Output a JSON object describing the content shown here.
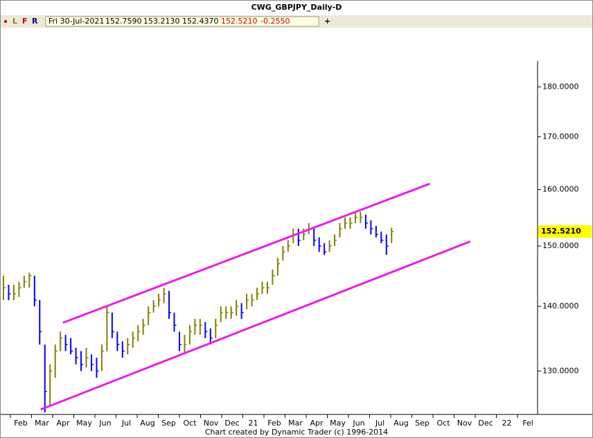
{
  "chart_data": {
    "type": "hlc",
    "title": "CWG_GBPJPY_Daily-D",
    "toolbar": {
      "letters": [
        "L",
        "F",
        "R"
      ],
      "date": "Fri 30-Jul-2021",
      "open": "152.7590",
      "high": "153.2130",
      "low": "152.4370",
      "close": "152.5210",
      "change": "-0.2550"
    },
    "last_price": {
      "value": 152.521,
      "label": "152.5210"
    },
    "footer": "Chart created by Dynamic Trader  (c) 1996-2014",
    "categories": [
      "Feb",
      "Mar",
      "Apr",
      "May",
      "Jun",
      "Jul",
      "Aug",
      "Sep",
      "Oct",
      "Nov",
      "Dec",
      "21",
      "Feb",
      "Mar",
      "Apr",
      "May",
      "Jun",
      "Jul",
      "Aug",
      "Sep",
      "Oct",
      "Nov",
      "Dec",
      "22",
      "Fel"
    ],
    "log_scale": true,
    "ylim": [
      123.7,
      185.4
    ],
    "yticks": [
      {
        "value": 130,
        "label": "130.0000"
      },
      {
        "value": 140,
        "label": "140.0000"
      },
      {
        "value": 150,
        "label": "150.0000"
      },
      {
        "value": 160,
        "label": "160.0000"
      },
      {
        "value": 170,
        "label": "170.0000"
      },
      {
        "value": 180,
        "label": "180.0000"
      }
    ],
    "up_color": "#808000",
    "down_color": "#0000ff",
    "high": [
      145,
      143.5,
      143.5,
      144,
      145,
      145.5,
      145,
      141,
      134,
      131,
      134,
      136,
      135.5,
      135,
      133.5,
      133,
      133.5,
      132.5,
      132,
      134,
      140,
      139,
      136,
      134.5,
      135,
      136,
      137,
      138,
      140,
      141,
      142,
      143,
      142.5,
      139,
      136,
      135.5,
      137,
      138,
      138,
      137.5,
      136.5,
      138,
      140,
      140,
      140,
      141,
      140.5,
      142,
      142,
      143,
      144,
      144,
      146,
      148,
      150,
      151,
      153,
      153,
      153,
      154,
      153,
      151.5,
      150.5,
      151,
      152,
      154,
      155,
      155,
      156,
      156,
      155.5,
      154.5,
      153.5,
      152.5,
      152,
      153.2
    ],
    "low": [
      141,
      141,
      141,
      141.5,
      143,
      143,
      140,
      134,
      124,
      125,
      129,
      133,
      133,
      132.5,
      131,
      130,
      130.5,
      130,
      129,
      130,
      133,
      135,
      133,
      132,
      132.5,
      133.5,
      134.5,
      135.5,
      137,
      139,
      140,
      140.5,
      138,
      136,
      133,
      132.5,
      134,
      135.5,
      135.5,
      135,
      134,
      135,
      137.5,
      138,
      138,
      138.5,
      138,
      139.5,
      140,
      141,
      142,
      142,
      143.5,
      145,
      147.5,
      149,
      150.5,
      150,
      151,
      152,
      150,
      149,
      148.5,
      149,
      150,
      151.5,
      153,
      153,
      154,
      154,
      153,
      152,
      151.5,
      150.5,
      148.5,
      150.5
    ],
    "close": [
      143,
      142,
      142,
      143,
      144,
      145,
      141,
      136,
      127,
      130,
      133,
      135,
      134,
      133,
      132,
      131,
      132,
      131,
      130,
      133,
      139,
      136,
      134,
      133,
      134,
      135,
      136,
      137,
      139,
      140,
      141,
      142,
      139,
      137,
      134,
      134,
      136,
      137,
      137,
      136,
      135,
      137,
      139,
      139,
      139,
      140,
      139,
      141,
      141,
      142,
      143,
      143,
      145,
      147,
      149,
      150,
      152,
      151,
      152,
      153,
      151,
      150,
      149,
      150,
      151,
      153,
      154,
      154,
      155,
      155,
      154,
      153,
      152,
      151,
      150,
      152.5
    ],
    "channel_color": "#e81ee8",
    "channels": [
      {
        "x": [
          11.5,
          82.4
        ],
        "y": [
          137.4,
          161.1
        ]
      },
      {
        "x": [
          7.2,
          90.2
        ],
        "y": [
          124.4,
          150.8
        ]
      }
    ]
  }
}
